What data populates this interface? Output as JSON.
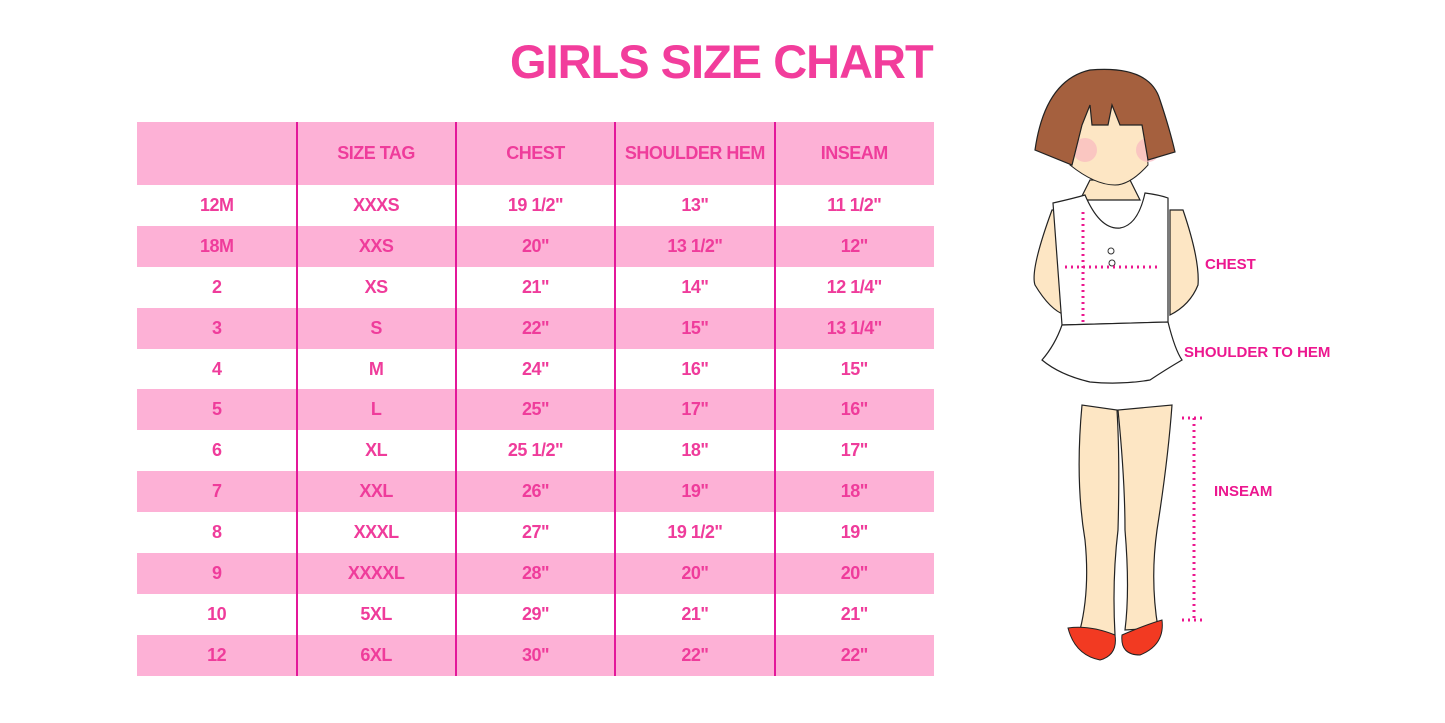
{
  "title": "GIRLS SIZE CHART",
  "table": {
    "headers": [
      "",
      "SIZE TAG",
      "CHEST",
      "SHOULDER HEM",
      "INSEAM"
    ],
    "rows": [
      [
        "12M",
        "XXXS",
        "19 1/2\"",
        "13\"",
        "11 1/2\""
      ],
      [
        "18M",
        "XXS",
        "20\"",
        "13 1/2\"",
        "12\""
      ],
      [
        "2",
        "XS",
        "21\"",
        "14\"",
        "12 1/4\""
      ],
      [
        "3",
        "S",
        "22\"",
        "15\"",
        "13 1/4\""
      ],
      [
        "4",
        "M",
        "24\"",
        "16\"",
        "15\""
      ],
      [
        "5",
        "L",
        "25\"",
        "17\"",
        "16\""
      ],
      [
        "6",
        "XL",
        "25 1/2\"",
        "18\"",
        "17\""
      ],
      [
        "7",
        "XXL",
        "26\"",
        "19\"",
        "18\""
      ],
      [
        "8",
        "XXXL",
        "27\"",
        "19 1/2\"",
        "19\""
      ],
      [
        "9",
        "XXXXL",
        "28\"",
        "20\"",
        "20\""
      ],
      [
        "10",
        "5XL",
        "29\"",
        "21\"",
        "21\""
      ],
      [
        "12",
        "6XL",
        "30\"",
        "22\"",
        "22\""
      ]
    ]
  },
  "figure": {
    "labels": {
      "chest": "CHEST",
      "shoulder": "SHOULDER TO HEM",
      "inseam": "INSEAM"
    }
  },
  "colors": {
    "accent": "#f23d9c",
    "row_pink": "#fdb1d6",
    "divider": "#e3189a"
  }
}
